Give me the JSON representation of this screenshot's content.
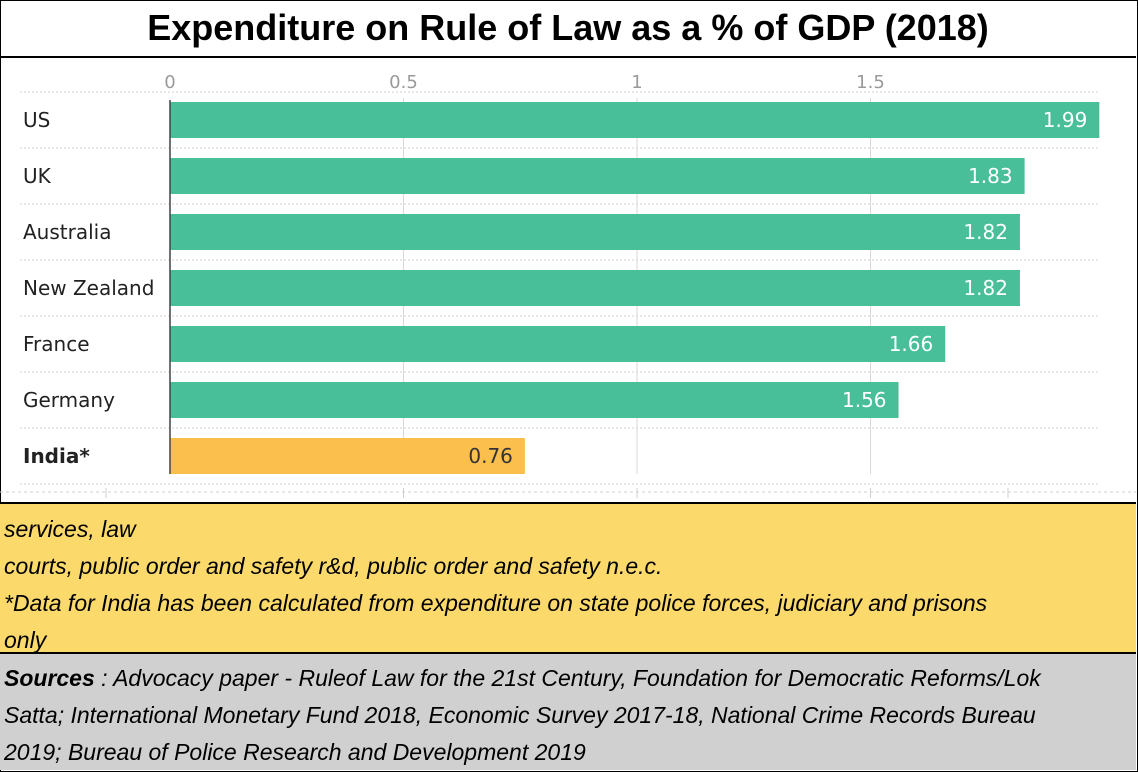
{
  "title": "Expenditure on Rule of Law as a % of GDP (2018)",
  "chart_data": {
    "type": "bar",
    "orientation": "horizontal",
    "title": "Expenditure on Rule of Law as a % of GDP (2018)",
    "categories": [
      "US",
      "UK",
      "Australia",
      "New Zealand",
      "France",
      "Germany",
      "India*"
    ],
    "values": [
      1.99,
      1.83,
      1.82,
      1.82,
      1.66,
      1.56,
      0.76
    ],
    "value_labels": [
      "1.99",
      "1.83",
      "1.82",
      "1.82",
      "1.66",
      "1.56",
      "0.76"
    ],
    "highlight": "India*",
    "xlim": [
      0,
      2
    ],
    "xticks": [
      0,
      0.5,
      1,
      1.5
    ],
    "xtick_labels": [
      "0",
      "0.5",
      "1",
      "1.5"
    ],
    "xlabel": "",
    "ylabel": "",
    "colors": {
      "bar": "#48bf98",
      "highlight": "#fbbf4e",
      "value_on_bar": "#ffffff",
      "value_on_highlight": "#333333"
    }
  },
  "notes": [
    "services, law",
    "courts, public order and safety r&d, public order and safety n.e.c.",
    "*Data for India has been calculated from expenditure on state police forces, judiciary and prisons",
    "only"
  ],
  "sources": {
    "label": "Sources",
    "lines": [
      " : Advocacy paper - Ruleof Law for the 21st Century, Foundation for Democratic Reforms/Lok",
      "Satta; International Monetary Fund 2018, Economic Survey 2017-18, National Crime Records Bureau",
      "2019; Bureau of Police Research and Development 2019"
    ]
  }
}
